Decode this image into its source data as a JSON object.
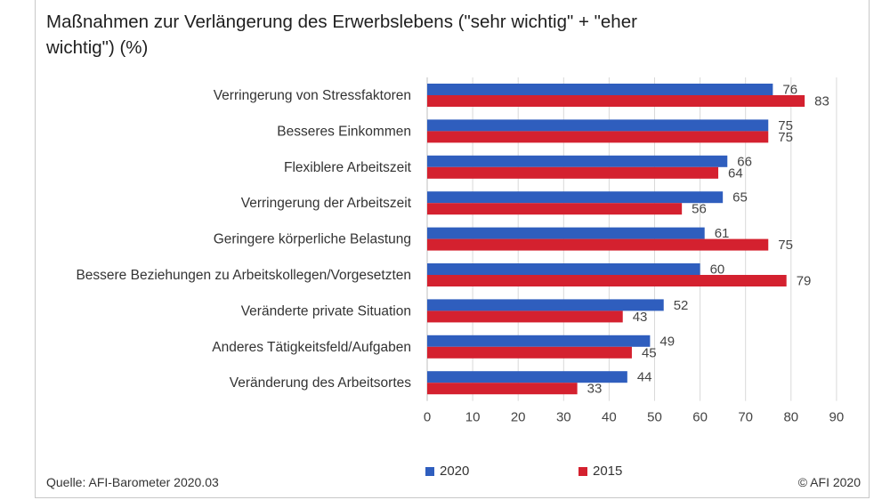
{
  "title": "Maßnahmen zur Verlängerung des Erwerbslebens (\"sehr wichtig\" + \"eher wichtig\") (%)",
  "source": "Quelle: AFI-Barometer 2020.03",
  "copyright": "© AFI 2020",
  "colors": {
    "s2020": "#2f5ebe",
    "s2015": "#d4212f",
    "grid": "#d9d9d9"
  },
  "chart_data": {
    "type": "bar",
    "orientation": "horizontal",
    "title": "Maßnahmen zur Verlängerung des Erwerbslebens (\"sehr wichtig\" + \"eher wichtig\") (%)",
    "categories": [
      "Verringerung von Stressfaktoren",
      "Besseres Einkommen",
      "Flexiblere Arbeitszeit",
      "Verringerung der Arbeitszeit",
      "Geringere körperliche Belastung",
      "Bessere Beziehungen zu Arbeitskollegen/Vorgesetzten",
      "Veränderte private Situation",
      "Anderes Tätigkeitsfeld/Aufgaben",
      "Veränderung des Arbeitsortes"
    ],
    "series": [
      {
        "name": "2020",
        "values": [
          76,
          75,
          66,
          65,
          61,
          60,
          52,
          49,
          44
        ]
      },
      {
        "name": "2015",
        "values": [
          83,
          75,
          64,
          56,
          75,
          79,
          43,
          45,
          33
        ]
      }
    ],
    "xlim": [
      0,
      90
    ],
    "xticks": [
      0,
      10,
      20,
      30,
      40,
      50,
      60,
      70,
      80,
      90
    ],
    "grid": true,
    "legend_position": "bottom"
  }
}
